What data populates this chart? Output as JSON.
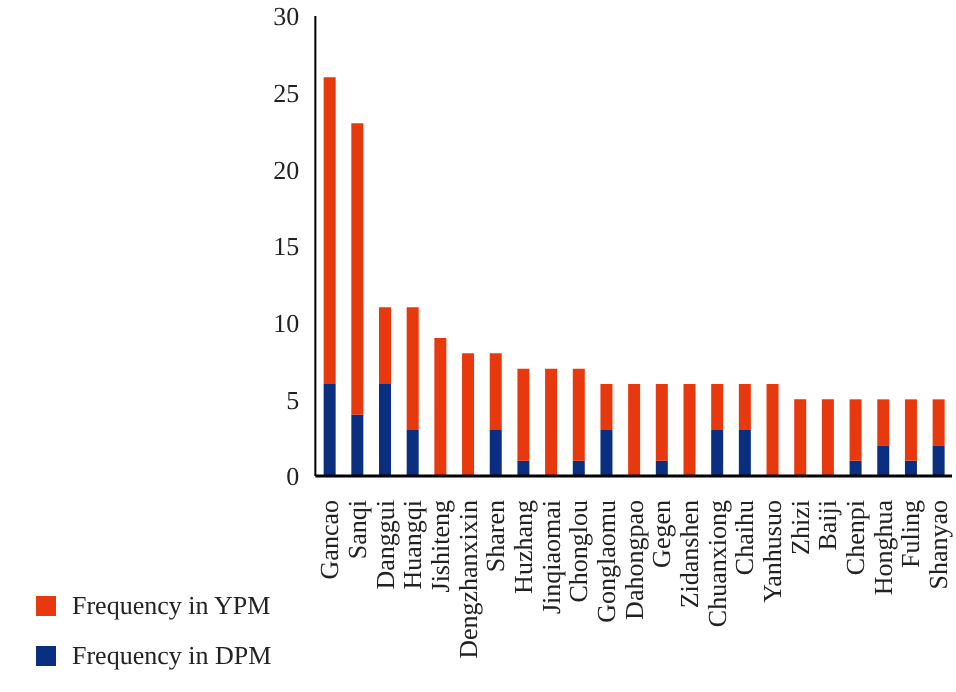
{
  "chart_data": {
    "type": "bar",
    "stacked": true,
    "categories": [
      "Gancao",
      "Sanqi",
      "Danggui",
      "Huangqi",
      "Jishiteng",
      "Dengzhanxixin",
      "Sharen",
      "Huzhang",
      "Jinqiaomai",
      "Chonglou",
      "Gonglaomu",
      "Dahongpao",
      "Gegen",
      "Zidanshen",
      "Chuanxiong",
      "Chaihu",
      "Yanhusuo",
      "Zhizi",
      "Baiji",
      "Chenpi",
      "Honghua",
      "Fuling",
      "Shanyao"
    ],
    "series": [
      {
        "name": "Frequency in DPM",
        "color": "#0a2f80",
        "values": [
          6,
          4,
          6,
          3,
          0,
          0,
          3,
          1,
          0,
          1,
          3,
          0,
          1,
          0,
          3,
          3,
          0,
          0,
          0,
          1,
          2,
          1,
          2
        ]
      },
      {
        "name": "Frequency in YPM",
        "color": "#e8380d",
        "values": [
          20,
          19,
          5,
          8,
          9,
          8,
          5,
          6,
          7,
          6,
          3,
          6,
          5,
          6,
          3,
          3,
          6,
          5,
          5,
          4,
          3,
          4,
          3
        ]
      }
    ],
    "ylim": [
      0,
      30
    ],
    "yticks": [
      0,
      5,
      10,
      15,
      20,
      25,
      30
    ],
    "grid": false,
    "legend": "bottom left"
  }
}
